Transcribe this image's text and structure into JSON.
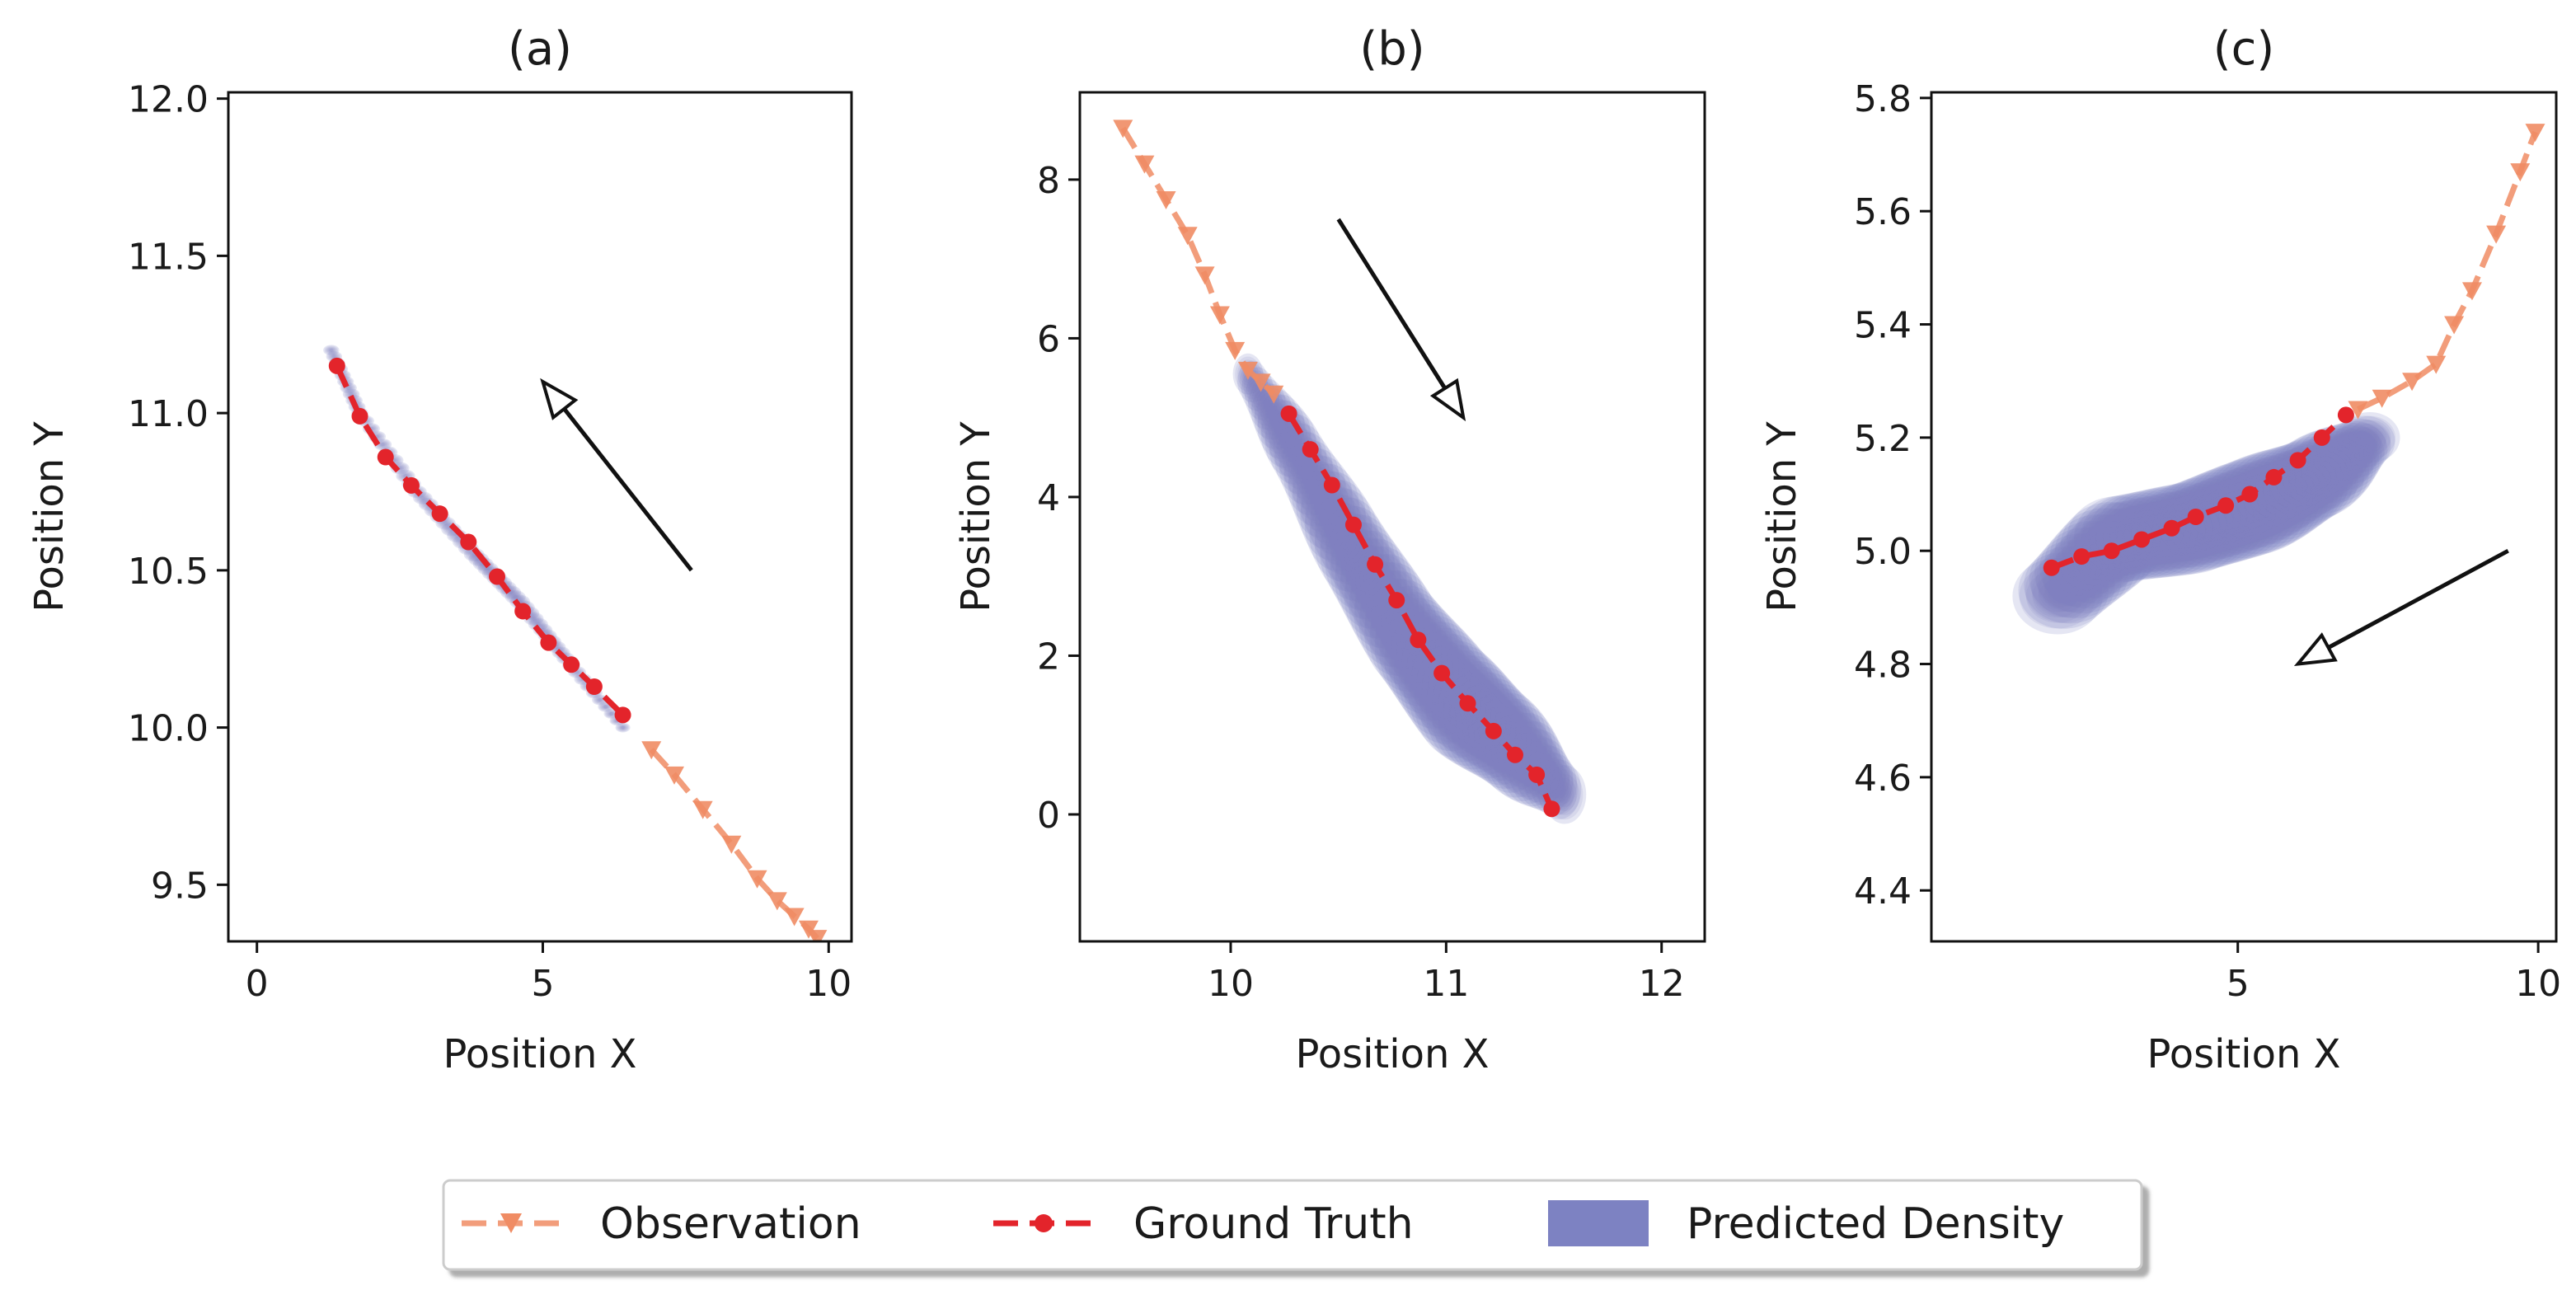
{
  "colors": {
    "observation": "#f08c64",
    "ground_truth": "#e3242b",
    "density": "#7d82c2",
    "arrow": "#111111",
    "axis": "#111111"
  },
  "legend": {
    "items": [
      {
        "label": "Observation",
        "kind": "observation"
      },
      {
        "label": "Ground Truth",
        "kind": "ground_truth"
      },
      {
        "label": "Predicted Density",
        "kind": "density"
      }
    ]
  },
  "chart_data": [
    {
      "type": "line",
      "title": "(a)",
      "xlabel": "Position X",
      "ylabel": "Position Y",
      "xlim": [
        -0.5,
        10.4
      ],
      "ylim": [
        9.32,
        12.02
      ],
      "xticks": [
        0,
        5,
        10
      ],
      "xtick_labels": [
        "0",
        "5",
        "10"
      ],
      "yticks": [
        9.5,
        10.0,
        10.5,
        11.0,
        11.5,
        12.0
      ],
      "ytick_labels": [
        "9.5",
        "10.0",
        "10.5",
        "11.0",
        "11.5",
        "12.0"
      ],
      "observation": {
        "x": [
          6.9,
          7.3,
          7.8,
          8.3,
          8.75,
          9.1,
          9.4,
          9.65,
          9.8
        ],
        "y": [
          9.93,
          9.85,
          9.74,
          9.63,
          9.52,
          9.45,
          9.4,
          9.36,
          9.33
        ]
      },
      "ground_truth": {
        "x": [
          1.4,
          1.8,
          2.25,
          2.7,
          3.2,
          3.7,
          4.2,
          4.65,
          5.1,
          5.5,
          5.9,
          6.4
        ],
        "y": [
          11.15,
          10.99,
          10.86,
          10.77,
          10.68,
          10.59,
          10.48,
          10.37,
          10.27,
          10.2,
          10.13,
          10.04
        ]
      },
      "density": {
        "path": [
          [
            1.3,
            11.2
          ],
          [
            1.8,
            11.0
          ],
          [
            2.8,
            10.75
          ],
          [
            3.8,
            10.55
          ],
          [
            4.6,
            10.4
          ],
          [
            5.4,
            10.22
          ],
          [
            6.4,
            10.0
          ]
        ],
        "spread": [
          0.14,
          0.15,
          0.17,
          0.18,
          0.18,
          0.16,
          0.13
        ],
        "y_to_x_ratio": 0.12
      },
      "arrow": {
        "from": [
          7.6,
          10.5
        ],
        "to": [
          5.0,
          11.1
        ]
      }
    },
    {
      "type": "line",
      "title": "(b)",
      "xlabel": "Position X",
      "ylabel": "Position Y",
      "xlim": [
        9.3,
        12.2
      ],
      "ylim": [
        -1.6,
        9.1
      ],
      "xticks": [
        10,
        11,
        12
      ],
      "xtick_labels": [
        "10",
        "11",
        "12"
      ],
      "yticks": [
        0,
        2,
        4,
        6,
        8
      ],
      "ytick_labels": [
        "0",
        "2",
        "4",
        "6",
        "8"
      ],
      "observation": {
        "x": [
          9.5,
          9.6,
          9.7,
          9.8,
          9.88,
          9.95,
          10.02,
          10.08,
          10.14,
          10.2
        ],
        "y": [
          8.65,
          8.2,
          7.75,
          7.3,
          6.8,
          6.3,
          5.85,
          5.6,
          5.45,
          5.3
        ]
      },
      "ground_truth": {
        "x": [
          10.27,
          10.37,
          10.47,
          10.57,
          10.67,
          10.77,
          10.87,
          10.98,
          11.1,
          11.22,
          11.32,
          11.42,
          11.49
        ],
        "y": [
          5.05,
          4.6,
          4.15,
          3.65,
          3.15,
          2.7,
          2.2,
          1.78,
          1.4,
          1.05,
          0.75,
          0.5,
          0.07
        ]
      },
      "density": {
        "path": [
          [
            10.08,
            5.55
          ],
          [
            10.3,
            4.6
          ],
          [
            10.55,
            3.4
          ],
          [
            10.8,
            2.3
          ],
          [
            11.05,
            1.45
          ],
          [
            11.3,
            0.9
          ],
          [
            11.55,
            0.25
          ]
        ],
        "spread": [
          0.07,
          0.12,
          0.16,
          0.18,
          0.2,
          0.17,
          0.1
        ],
        "y_to_x_ratio": 3.7
      },
      "arrow": {
        "from": [
          10.5,
          7.5
        ],
        "to": [
          11.08,
          5.0
        ]
      }
    },
    {
      "type": "line",
      "title": "(c)",
      "xlabel": "Position X",
      "ylabel": "Position Y",
      "xlim": [
        -0.1,
        10.3
      ],
      "ylim": [
        4.31,
        5.81
      ],
      "xticks": [
        5,
        10
      ],
      "xtick_labels": [
        "5",
        "10"
      ],
      "yticks": [
        4.4,
        4.6,
        4.8,
        5.0,
        5.2,
        5.4,
        5.6,
        5.8
      ],
      "ytick_labels": [
        "4.4",
        "4.6",
        "4.8",
        "5.0",
        "5.2",
        "5.4",
        "5.6",
        "5.8"
      ],
      "observation": {
        "x": [
          7.0,
          7.4,
          7.9,
          8.3,
          8.6,
          8.9,
          9.3,
          9.7,
          9.95
        ],
        "y": [
          5.25,
          5.27,
          5.3,
          5.33,
          5.4,
          5.46,
          5.56,
          5.67,
          5.74
        ]
      },
      "ground_truth": {
        "x": [
          1.9,
          2.4,
          2.9,
          3.4,
          3.9,
          4.3,
          4.8,
          5.2,
          5.6,
          6.0,
          6.4,
          6.8
        ],
        "y": [
          4.97,
          4.99,
          5.0,
          5.02,
          5.04,
          5.06,
          5.08,
          5.1,
          5.13,
          5.16,
          5.2,
          5.24
        ]
      },
      "density": {
        "path": [
          [
            2.0,
            4.92
          ],
          [
            3.0,
            5.02
          ],
          [
            4.2,
            5.04
          ],
          [
            5.3,
            5.08
          ],
          [
            6.3,
            5.13
          ],
          [
            7.2,
            5.2
          ]
        ],
        "spread": [
          0.75,
          0.85,
          0.9,
          0.95,
          0.8,
          0.5
        ],
        "y_to_x_ratio": 0.09
      },
      "arrow": {
        "from": [
          9.5,
          5.0
        ],
        "to": [
          6.0,
          4.8
        ]
      }
    }
  ]
}
